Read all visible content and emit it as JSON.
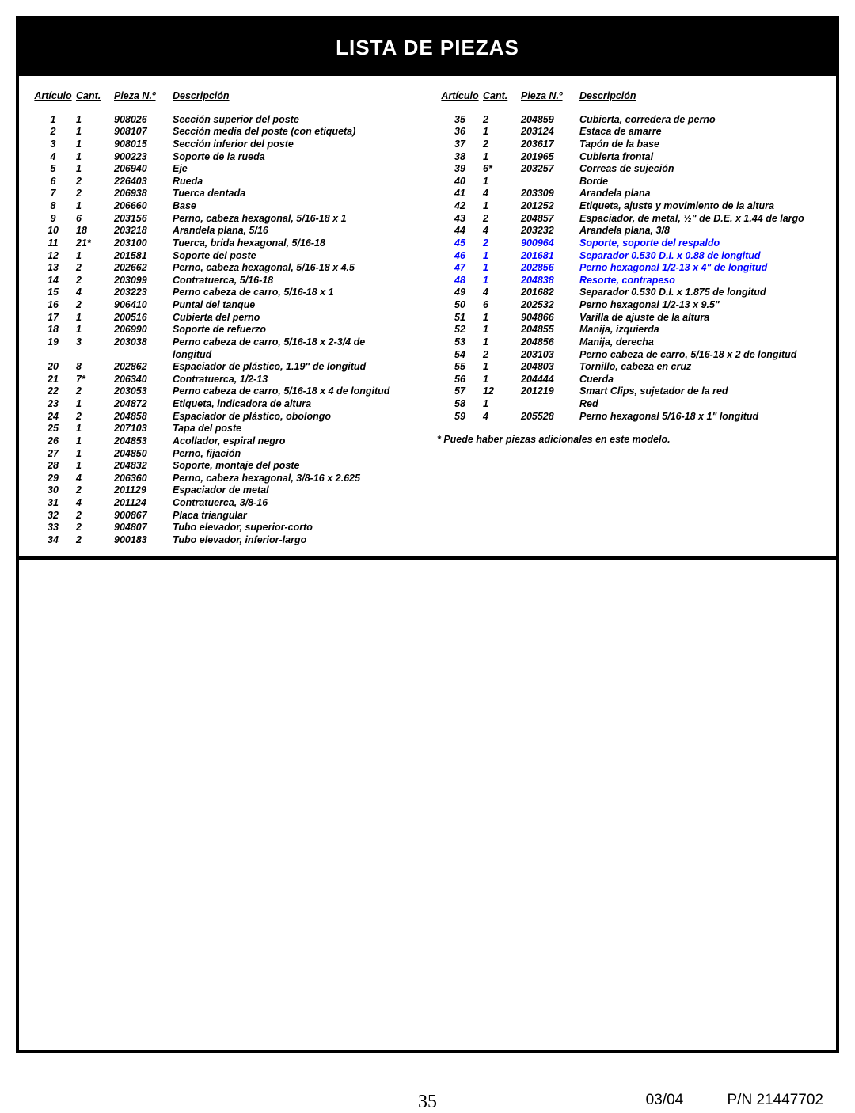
{
  "title": "LISTA DE PIEZAS",
  "headers": {
    "art": "Artículo",
    "qty": "Cant.",
    "pn": "Pieza N.º",
    "desc": "Descripción"
  },
  "note": "* Puede haber piezas adicionales en este modelo.",
  "footer": {
    "page": "35",
    "date": "03/04",
    "pn": "P/N 21447702"
  },
  "left": [
    {
      "a": "1",
      "q": "1",
      "p": "908026",
      "d": "Sección superior del poste"
    },
    {
      "a": "2",
      "q": "1",
      "p": "908107",
      "d": "Sección media del poste (con etiqueta)"
    },
    {
      "a": "3",
      "q": "1",
      "p": "908015",
      "d": "Sección inferior del poste"
    },
    {
      "a": "4",
      "q": "1",
      "p": "900223",
      "d": "Soporte de la rueda"
    },
    {
      "a": "5",
      "q": "1",
      "p": "206940",
      "d": "Eje"
    },
    {
      "a": "6",
      "q": "2",
      "p": "226403",
      "d": "Rueda"
    },
    {
      "a": "7",
      "q": "2",
      "p": "206938",
      "d": "Tuerca dentada"
    },
    {
      "a": "8",
      "q": "1",
      "p": "206660",
      "d": "Base"
    },
    {
      "a": "9",
      "q": "6",
      "p": "203156",
      "d": "Perno, cabeza hexagonal, 5/16-18 x 1"
    },
    {
      "a": "10",
      "q": "18",
      "p": "203218",
      "d": "Arandela plana, 5/16"
    },
    {
      "a": "11",
      "q": "21*",
      "p": "203100",
      "d": "Tuerca, brida hexagonal, 5/16-18"
    },
    {
      "a": "12",
      "q": "1",
      "p": "201581",
      "d": "Soporte del poste"
    },
    {
      "a": "13",
      "q": "2",
      "p": "202662",
      "d": "Perno, cabeza hexagonal, 5/16-18 x 4.5"
    },
    {
      "a": "14",
      "q": "2",
      "p": "203099",
      "d": "Contratuerca, 5/16-18"
    },
    {
      "a": "15",
      "q": "4",
      "p": "203223",
      "d": "Perno cabeza de carro, 5/16-18 x 1"
    },
    {
      "a": "16",
      "q": "2",
      "p": "906410",
      "d": "Puntal del tanque"
    },
    {
      "a": "17",
      "q": "1",
      "p": "200516",
      "d": "Cubierta del perno"
    },
    {
      "a": "18",
      "q": "1",
      "p": "206990",
      "d": "Soporte de refuerzo"
    },
    {
      "a": "19",
      "q": "3",
      "p": "203038",
      "d": "Perno cabeza de carro, 5/16-18 x 2-3/4 de"
    },
    {
      "a": "",
      "q": "",
      "p": "",
      "d": "longitud"
    },
    {
      "a": "20",
      "q": "8",
      "p": "202862",
      "d": "Espaciador de plástico, 1.19\" de longitud"
    },
    {
      "a": "21",
      "q": "7*",
      "p": "206340",
      "d": "Contratuerca, 1/2-13"
    },
    {
      "a": "22",
      "q": "2",
      "p": "203053",
      "d": "Perno cabeza de carro, 5/16-18 x 4 de longitud"
    },
    {
      "a": "23",
      "q": "1",
      "p": "204872",
      "d": "Etiqueta, indicadora de altura"
    },
    {
      "a": "24",
      "q": "2",
      "p": "204858",
      "d": "Espaciador de plástico, obolongo"
    },
    {
      "a": "25",
      "q": "1",
      "p": "207103",
      "d": "Tapa del poste"
    },
    {
      "a": "26",
      "q": "1",
      "p": "204853",
      "d": "Acollador, espiral negro"
    },
    {
      "a": "27",
      "q": "1",
      "p": "204850",
      "d": "Perno, fijación"
    },
    {
      "a": "28",
      "q": "1",
      "p": "204832",
      "d": "Soporte, montaje del poste"
    },
    {
      "a": "29",
      "q": "4",
      "p": "206360",
      "d": "Perno, cabeza hexagonal, 3/8-16 x 2.625"
    },
    {
      "a": "30",
      "q": "2",
      "p": "201129",
      "d": "Espaciador de metal"
    },
    {
      "a": "31",
      "q": "4",
      "p": "201124",
      "d": "Contratuerca, 3/8-16"
    },
    {
      "a": "32",
      "q": "2",
      "p": "900867",
      "d": "Placa triangular"
    },
    {
      "a": "33",
      "q": "2",
      "p": "904807",
      "d": "Tubo elevador, superior-corto"
    },
    {
      "a": "34",
      "q": "2",
      "p": "900183",
      "d": "Tubo elevador, inferior-largo"
    }
  ],
  "right": [
    {
      "a": "35",
      "q": "2",
      "p": "204859",
      "d": "Cubierta, corredera de perno"
    },
    {
      "a": "36",
      "q": "1",
      "p": "203124",
      "d": "Estaca de amarre"
    },
    {
      "a": "37",
      "q": "2",
      "p": "203617",
      "d": "Tapón de la base"
    },
    {
      "a": "38",
      "q": "1",
      "p": "201965",
      "d": "Cubierta frontal"
    },
    {
      "a": "39",
      "q": "6*",
      "p": "203257",
      "d": "Correas de sujeción"
    },
    {
      "a": "40",
      "q": "1",
      "p": "",
      "d": "Borde"
    },
    {
      "a": "41",
      "q": "4",
      "p": "203309",
      "d": "Arandela plana"
    },
    {
      "a": "42",
      "q": "1",
      "p": "201252",
      "d": "Etiqueta, ajuste y movimiento de la altura"
    },
    {
      "a": "43",
      "q": "2",
      "p": "204857",
      "d": "Espaciador, de metal, ½\" de D.E. x 1.44 de largo"
    },
    {
      "a": "44",
      "q": "4",
      "p": "203232",
      "d": "Arandela plana, 3/8"
    },
    {
      "a": "45",
      "q": "2",
      "p": "900964",
      "d": "Soporte, soporte del respaldo",
      "blue": true
    },
    {
      "a": "46",
      "q": "1",
      "p": "201681",
      "d": "Separador 0.530 D.I. x 0.88 de longitud",
      "blue": true
    },
    {
      "a": "47",
      "q": "1",
      "p": "202856",
      "d": "Perno hexagonal 1/2-13 x 4\" de longitud",
      "blue": true
    },
    {
      "a": "48",
      "q": "1",
      "p": "204838",
      "d": "Resorte, contrapeso",
      "blue": true
    },
    {
      "a": "49",
      "q": "4",
      "p": "201682",
      "d": "Separador 0.530 D.I. x 1.875 de longitud"
    },
    {
      "a": "50",
      "q": "6",
      "p": "202532",
      "d": "Perno hexagonal 1/2-13 x 9.5\""
    },
    {
      "a": "51",
      "q": "1",
      "p": "904866",
      "d": "Varilla de ajuste de la altura"
    },
    {
      "a": "52",
      "q": "1",
      "p": "204855",
      "d": "Manija, izquierda"
    },
    {
      "a": "53",
      "q": "1",
      "p": "204856",
      "d": "Manija, derecha"
    },
    {
      "a": "54",
      "q": "2",
      "p": "203103",
      "d": "Perno cabeza de carro, 5/16-18 x 2 de longitud"
    },
    {
      "a": "55",
      "q": "1",
      "p": "204803",
      "d": "Tornillo, cabeza en cruz"
    },
    {
      "a": "56",
      "q": "1",
      "p": "204444",
      "d": "Cuerda"
    },
    {
      "a": "57",
      "q": "12",
      "p": "201219",
      "d": "Smart Clips, sujetador de la red"
    },
    {
      "a": "58",
      "q": "1",
      "p": "",
      "d": "Red"
    },
    {
      "a": "59",
      "q": "4",
      "p": "205528",
      "d": "Perno hexagonal 5/16-18 x 1\" longitud"
    }
  ]
}
